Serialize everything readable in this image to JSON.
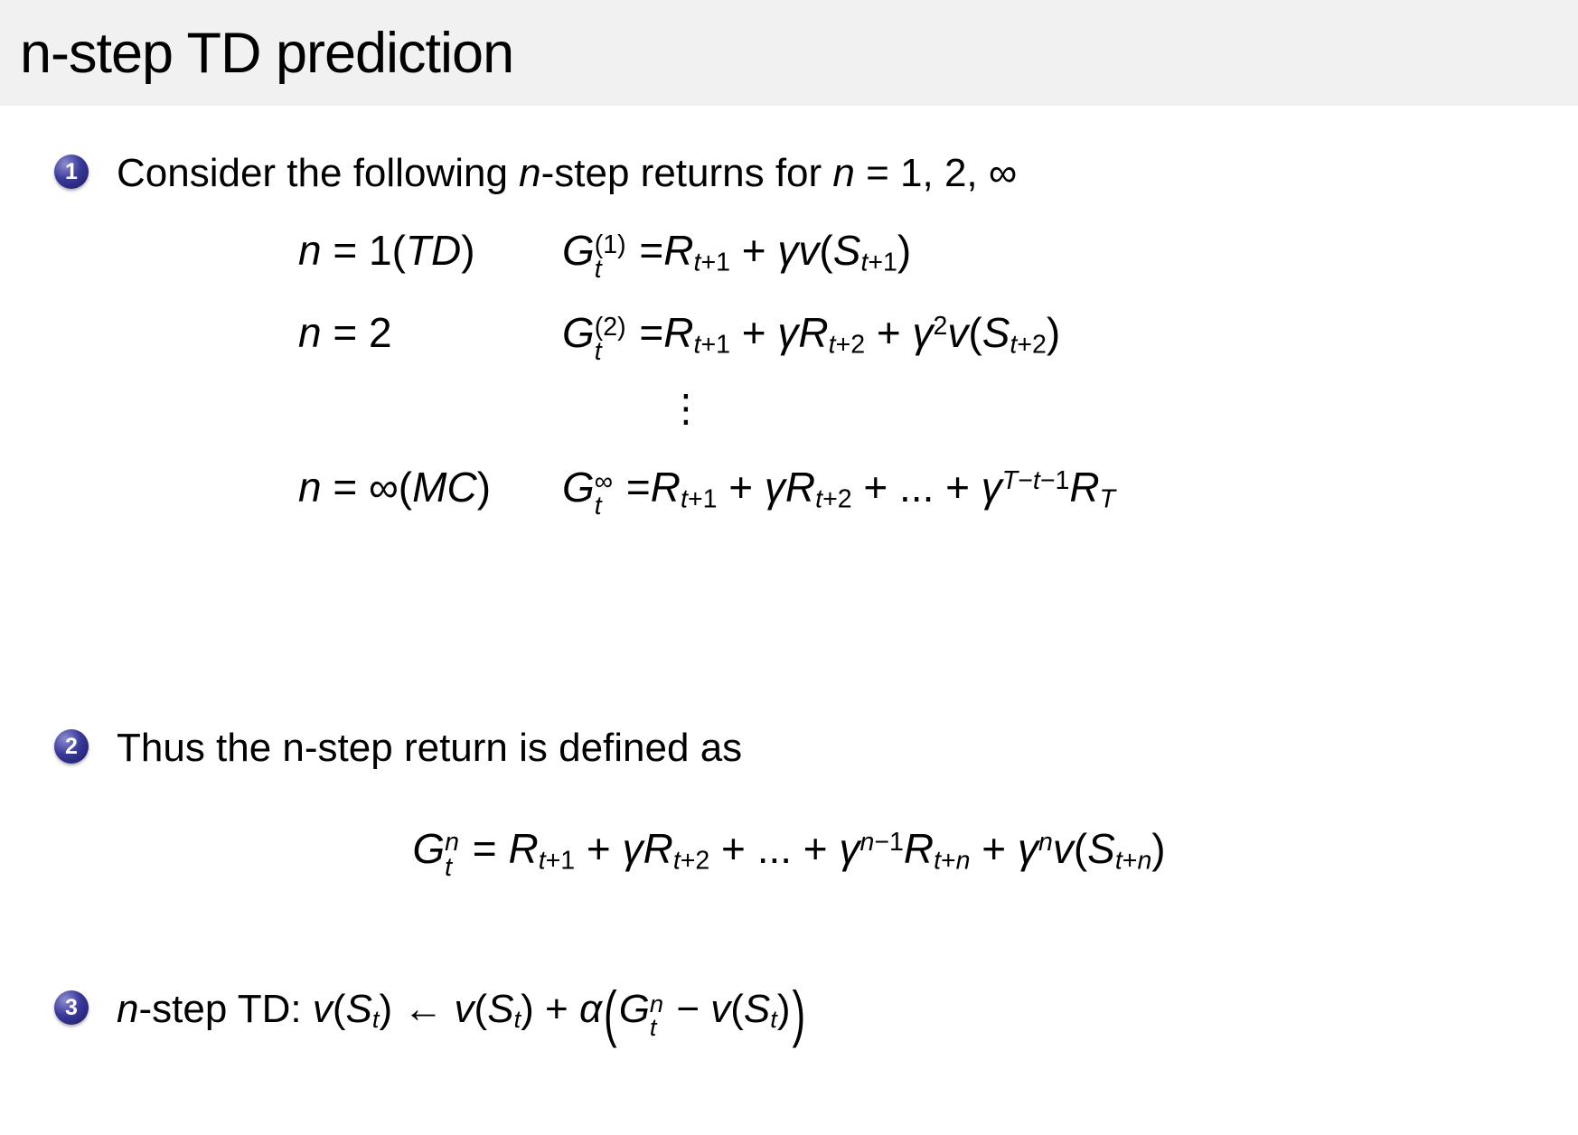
{
  "title": "n-step TD prediction",
  "colors": {
    "header_background": "#f1f1f1",
    "bullet_ball": "#2e2e8f",
    "text": "#000000"
  },
  "bullets": [
    {
      "number": "1",
      "text": "Consider the following *n*-step returns for *n* = 1, 2, ∞"
    },
    {
      "number": "2",
      "text": "Thus the n-step return is defined as"
    },
    {
      "number": "3",
      "text": "*n*-step TD: "
    }
  ],
  "returns_block": {
    "rows": [
      {
        "label": "n = 1(TD)",
        "formula": "G_{t}^{(1)} =R_{t+1} + γv(S_{t+1})"
      },
      {
        "label": "n = 2",
        "formula": "G_{t}^{(2)} =R_{t+1} + γR_{t+2} + γ^{2}v(S_{t+2})"
      },
      {
        "label": "n = ∞(MC)",
        "formula": "G_{t}^{∞} =R_{t+1} + γR_{t+2} + ... + γ^{T−t−1}R_{T}"
      }
    ],
    "vdots": "⋮"
  },
  "equations": {
    "n_step_return": "G_{t}^{n} = R_{t+1} + γR_{t+2} + ... + γ^{n−1}R_{t+n} + γ^{n}v(S_{t+n})",
    "n_step_td": "v(S_{t}) ← v(S_{t}) + α@(G_{t}^{n} − v(S_{t})@)"
  }
}
